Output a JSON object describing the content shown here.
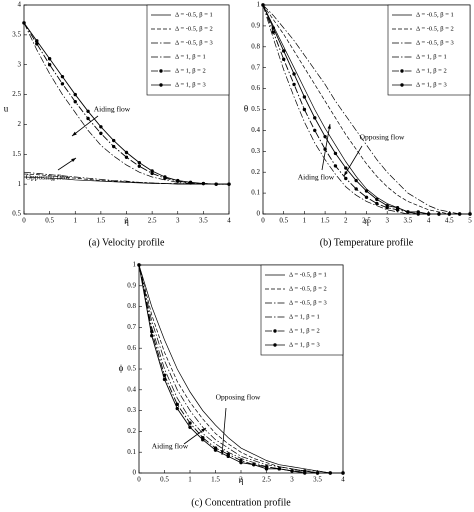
{
  "chart_data": [
    {
      "type": "line",
      "title": "(a) Velocity profile",
      "xlabel": "η",
      "ylabel": "u",
      "annotations": [
        "Aiding flow",
        "Opposing flow"
      ],
      "legend": "upper right",
      "x": [
        0,
        0.25,
        0.5,
        0.75,
        1,
        1.25,
        1.5,
        1.75,
        2,
        2.25,
        2.5,
        2.75,
        3,
        3.25,
        3.5,
        3.75,
        4
      ],
      "xlim": [
        0,
        4
      ],
      "xticks": [
        0,
        0.5,
        1,
        1.5,
        2,
        2.5,
        3,
        3.5,
        4
      ],
      "ylim": [
        0.5,
        4
      ],
      "yticks": [
        0.5,
        1,
        1.5,
        2,
        2.5,
        3,
        3.5,
        4
      ],
      "series": [
        {
          "name": "Δ = -0.5, β = 1",
          "color": "#000000",
          "style": "solid",
          "marker": false,
          "values": [
            1.12,
            1.11,
            1.1,
            1.09,
            1.07,
            1.06,
            1.05,
            1.04,
            1.03,
            1.02,
            1.01,
            1.01,
            1,
            1,
            1,
            1,
            1
          ]
        },
        {
          "name": "Δ = -0.5, β = 2",
          "color": "#000000",
          "style": "dashed",
          "marker": false,
          "values": [
            1.17,
            1.16,
            1.14,
            1.12,
            1.1,
            1.08,
            1.06,
            1.05,
            1.04,
            1.03,
            1.02,
            1.01,
            1.01,
            1,
            1,
            1,
            1
          ]
        },
        {
          "name": "Δ = -0.5, β = 3",
          "color": "#000000",
          "style": "dashdot",
          "marker": false,
          "values": [
            1.2,
            1.18,
            1.16,
            1.14,
            1.12,
            1.1,
            1.08,
            1.06,
            1.05,
            1.03,
            1.02,
            1.01,
            1.01,
            1,
            1,
            1,
            1
          ]
        },
        {
          "name": "Δ = 1, β = 1",
          "color": "#000000",
          "style": "dashdot",
          "marker": false,
          "values": [
            3.7,
            3.25,
            2.85,
            2.5,
            2.2,
            1.9,
            1.65,
            1.47,
            1.32,
            1.2,
            1.12,
            1.07,
            1.03,
            1.01,
            1,
            1,
            1
          ]
        },
        {
          "name": "Δ = 1, β = 2",
          "color": "#000000",
          "style": "dashdot",
          "marker": true,
          "values": [
            3.7,
            3.35,
            3.0,
            2.68,
            2.38,
            2.1,
            1.85,
            1.63,
            1.45,
            1.3,
            1.18,
            1.1,
            1.05,
            1.02,
            1.01,
            1,
            1
          ]
        },
        {
          "name": "Δ = 1, β = 3",
          "color": "#000000",
          "style": "solid",
          "marker": true,
          "values": [
            3.7,
            3.4,
            3.1,
            2.8,
            2.5,
            2.22,
            1.96,
            1.73,
            1.53,
            1.36,
            1.22,
            1.12,
            1.06,
            1.03,
            1.01,
            1,
            1
          ]
        }
      ]
    },
    {
      "type": "line",
      "title": "(b) Temperature profile",
      "xlabel": "η",
      "ylabel": "θ",
      "annotations": [
        "Opposing flow",
        "Aiding flow"
      ],
      "legend": "upper right",
      "x": [
        0,
        0.25,
        0.5,
        0.75,
        1,
        1.25,
        1.5,
        1.75,
        2,
        2.25,
        2.5,
        2.75,
        3,
        3.25,
        3.5,
        3.75,
        4,
        4.25,
        4.5,
        4.75,
        5
      ],
      "xlim": [
        0,
        5
      ],
      "xticks": [
        0,
        0.5,
        1,
        1.5,
        2,
        2.5,
        3,
        3.5,
        4,
        4.5,
        5
      ],
      "ylim": [
        0,
        1
      ],
      "yticks": [
        0,
        0.1,
        0.2,
        0.3,
        0.4,
        0.5,
        0.6,
        0.7,
        0.8,
        0.9,
        1
      ],
      "series": [
        {
          "name": "Δ = -0.5, β = 1",
          "color": "#000000",
          "style": "solid",
          "marker": false,
          "values": [
            1,
            0.9,
            0.8,
            0.7,
            0.6,
            0.5,
            0.41,
            0.33,
            0.25,
            0.18,
            0.12,
            0.08,
            0.05,
            0.03,
            0.01,
            0,
            0,
            0,
            0,
            0,
            0
          ]
        },
        {
          "name": "Δ = -0.5, β = 2",
          "color": "#000000",
          "style": "dashed",
          "marker": false,
          "values": [
            1,
            0.93,
            0.86,
            0.78,
            0.7,
            0.62,
            0.54,
            0.46,
            0.38,
            0.31,
            0.24,
            0.18,
            0.13,
            0.09,
            0.06,
            0.04,
            0.02,
            0.01,
            0,
            0,
            0
          ]
        },
        {
          "name": "Δ = -0.5, β = 3",
          "color": "#000000",
          "style": "dashdot",
          "marker": false,
          "values": [
            1,
            0.95,
            0.89,
            0.83,
            0.76,
            0.69,
            0.62,
            0.54,
            0.47,
            0.4,
            0.33,
            0.26,
            0.2,
            0.15,
            0.1,
            0.07,
            0.04,
            0.02,
            0.01,
            0,
            0
          ]
        },
        {
          "name": "Δ = 1, β = 1",
          "color": "#000000",
          "style": "dashdot",
          "marker": false,
          "values": [
            1,
            0.84,
            0.69,
            0.56,
            0.44,
            0.34,
            0.26,
            0.19,
            0.13,
            0.09,
            0.06,
            0.04,
            0.02,
            0.01,
            0,
            0,
            0,
            0,
            0,
            0,
            0
          ]
        },
        {
          "name": "Δ = 1, β = 2",
          "color": "#000000",
          "style": "dashdot",
          "marker": true,
          "values": [
            1,
            0.87,
            0.74,
            0.62,
            0.5,
            0.4,
            0.31,
            0.23,
            0.17,
            0.12,
            0.08,
            0.05,
            0.03,
            0.02,
            0.01,
            0,
            0,
            0,
            0,
            0,
            0
          ]
        },
        {
          "name": "Δ = 1, β = 3",
          "color": "#000000",
          "style": "solid",
          "marker": true,
          "values": [
            1,
            0.89,
            0.78,
            0.67,
            0.56,
            0.46,
            0.37,
            0.29,
            0.22,
            0.16,
            0.11,
            0.07,
            0.04,
            0.03,
            0.01,
            0.01,
            0,
            0,
            0,
            0,
            0
          ]
        }
      ]
    },
    {
      "type": "line",
      "title": "(c) Concentration profile",
      "xlabel": "η",
      "ylabel": "ϕ",
      "annotations": [
        "Opposing flow",
        "Aiding flow"
      ],
      "legend": "upper right",
      "x": [
        0,
        0.25,
        0.5,
        0.75,
        1,
        1.25,
        1.5,
        1.75,
        2,
        2.25,
        2.5,
        2.75,
        3,
        3.25,
        3.5,
        3.75,
        4
      ],
      "xlim": [
        0,
        4
      ],
      "xticks": [
        0,
        0.5,
        1,
        1.5,
        2,
        2.5,
        3,
        3.5,
        4
      ],
      "ylim": [
        0,
        1
      ],
      "yticks": [
        0,
        0.1,
        0.2,
        0.3,
        0.4,
        0.5,
        0.6,
        0.7,
        0.8,
        0.9,
        1
      ],
      "series": [
        {
          "name": "Δ = -0.5, β = 1",
          "color": "#000000",
          "style": "solid",
          "marker": false,
          "values": [
            1,
            0.8,
            0.64,
            0.5,
            0.39,
            0.3,
            0.23,
            0.17,
            0.12,
            0.09,
            0.06,
            0.04,
            0.03,
            0.02,
            0.01,
            0,
            0
          ]
        },
        {
          "name": "Δ = -0.5, β = 2",
          "color": "#000000",
          "style": "dashed",
          "marker": false,
          "values": [
            1,
            0.76,
            0.58,
            0.44,
            0.34,
            0.26,
            0.19,
            0.14,
            0.1,
            0.07,
            0.05,
            0.03,
            0.02,
            0.01,
            0.01,
            0,
            0
          ]
        },
        {
          "name": "Δ = -0.5, β = 3",
          "color": "#000000",
          "style": "dashdot",
          "marker": false,
          "values": [
            1,
            0.73,
            0.54,
            0.4,
            0.3,
            0.22,
            0.16,
            0.12,
            0.08,
            0.06,
            0.04,
            0.03,
            0.02,
            0.01,
            0,
            0,
            0
          ]
        },
        {
          "name": "Δ = 1, β = 1",
          "color": "#000000",
          "style": "dashdot",
          "marker": false,
          "values": [
            1,
            0.7,
            0.5,
            0.36,
            0.26,
            0.19,
            0.14,
            0.1,
            0.07,
            0.05,
            0.03,
            0.02,
            0.01,
            0.01,
            0,
            0,
            0
          ]
        },
        {
          "name": "Δ = 1, β = 2",
          "color": "#000000",
          "style": "dashdot",
          "marker": true,
          "values": [
            1,
            0.68,
            0.47,
            0.33,
            0.24,
            0.17,
            0.12,
            0.09,
            0.06,
            0.04,
            0.03,
            0.02,
            0.01,
            0.01,
            0,
            0,
            0
          ]
        },
        {
          "name": "Δ = 1, β = 3",
          "color": "#000000",
          "style": "solid",
          "marker": true,
          "values": [
            1,
            0.66,
            0.45,
            0.31,
            0.22,
            0.16,
            0.11,
            0.08,
            0.05,
            0.04,
            0.02,
            0.02,
            0.01,
            0,
            0,
            0,
            0
          ]
        }
      ]
    }
  ]
}
